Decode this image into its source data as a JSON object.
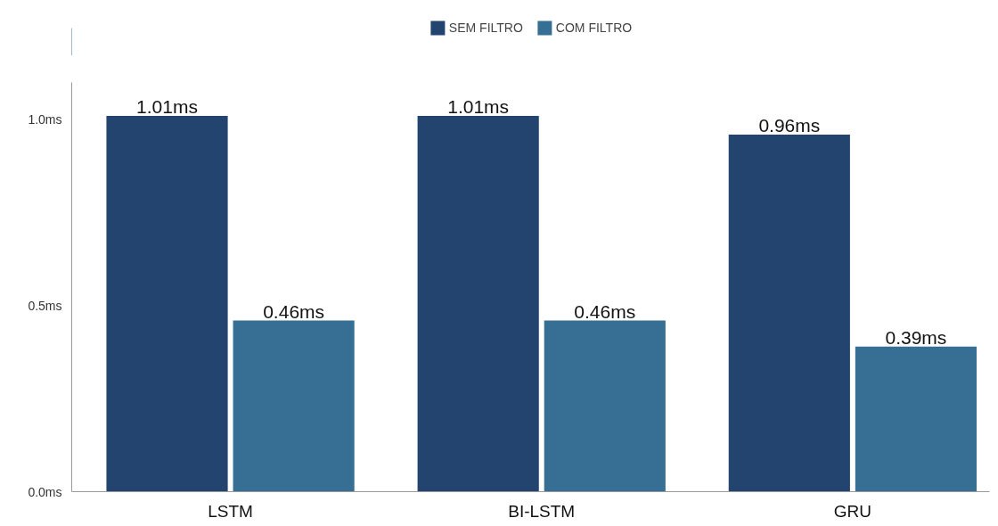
{
  "chart_data": {
    "type": "bar",
    "categories": [
      "LSTM",
      "BI-LSTM",
      "GRU"
    ],
    "series": [
      {
        "name": "SEM FILTRO",
        "color": "#23446e",
        "values": [
          1.01,
          1.01,
          0.96
        ],
        "value_labels": [
          "1.01ms",
          "1.01ms",
          "0.96ms"
        ]
      },
      {
        "name": "COM FILTRO",
        "color": "#376f94",
        "values": [
          0.46,
          0.46,
          0.39
        ],
        "value_labels": [
          "0.46ms",
          "0.46ms",
          "0.39ms"
        ]
      }
    ],
    "ylim": [
      0,
      1.1
    ],
    "yticks": [
      {
        "value": 0,
        "label": "0.0ms"
      },
      {
        "value": 0.5,
        "label": "0.5ms"
      },
      {
        "value": 1.0,
        "label": "1.0ms"
      }
    ],
    "grid": false,
    "legend": "top"
  }
}
